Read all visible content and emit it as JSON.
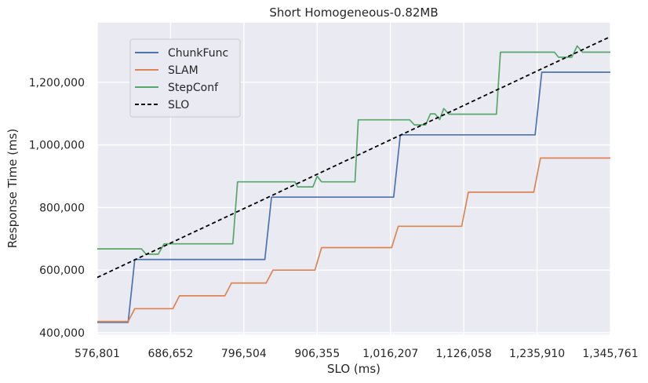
{
  "chart_data": {
    "type": "line",
    "title": "Short Homogeneous-0.82MB",
    "xlabel": "SLO (ms)",
    "ylabel": "Response Time (ms)",
    "xlim": [
      576801,
      1345761
    ],
    "ylim": [
      395000,
      1390000
    ],
    "x_ticks": [
      576801,
      686652,
      796504,
      906355,
      1016207,
      1126058,
      1235910,
      1345761
    ],
    "x_tick_labels": [
      "576,801",
      "686,652",
      "796,504",
      "906,355",
      "1,016,207",
      "1,126,058",
      "1,235,910",
      "1,345,761"
    ],
    "y_ticks": [
      400000,
      600000,
      800000,
      1000000,
      1200000
    ],
    "y_tick_labels": [
      "400,000",
      "600,000",
      "800,000",
      "1,000,000",
      "1,200,000"
    ],
    "grid": true,
    "legend_position": "top-left",
    "series": [
      {
        "name": "ChunkFunc",
        "color": "#4c72b0",
        "x": [
          576801,
          623000,
          633000,
          828000,
          838000,
          1021000,
          1031000,
          1233000,
          1243000,
          1345761
        ],
        "y": [
          433000,
          433000,
          634000,
          634000,
          833000,
          833000,
          1032000,
          1032000,
          1232000,
          1232000
        ]
      },
      {
        "name": "SLAM",
        "color": "#dd8452",
        "x": [
          576801,
          623000,
          633000,
          690000,
          700000,
          768000,
          778000,
          830000,
          840000,
          903000,
          913000,
          1018000,
          1028000,
          1123000,
          1133000,
          1231000,
          1241000,
          1345761
        ],
        "y": [
          436000,
          436000,
          477000,
          477000,
          518000,
          518000,
          559000,
          559000,
          600000,
          600000,
          672000,
          672000,
          740000,
          740000,
          849000,
          849000,
          958000,
          958000
        ]
      },
      {
        "name": "StepConf",
        "color": "#55a868",
        "x": [
          576801,
          643000,
          650000,
          668000,
          677000,
          780000,
          787000,
          873000,
          877000,
          900000,
          906355,
          913000,
          963000,
          968000,
          1045000,
          1052000,
          1069000,
          1076000,
          1083000,
          1090000,
          1096000,
          1104000,
          1175000,
          1181000,
          1262000,
          1268000,
          1288000,
          1296000,
          1304000,
          1323000,
          1345761
        ],
        "y": [
          668000,
          668000,
          651000,
          651000,
          684000,
          684000,
          882000,
          882000,
          866000,
          866000,
          900000,
          882000,
          882000,
          1080000,
          1080000,
          1064000,
          1064000,
          1099000,
          1099000,
          1081000,
          1116000,
          1098000,
          1098000,
          1296000,
          1296000,
          1280000,
          1280000,
          1316000,
          1296000,
          1296000,
          1296000
        ]
      },
      {
        "name": "SLO",
        "color": "#000000",
        "dashed": true,
        "x": [
          576801,
          1345761
        ],
        "y": [
          576801,
          1345761
        ]
      }
    ]
  }
}
